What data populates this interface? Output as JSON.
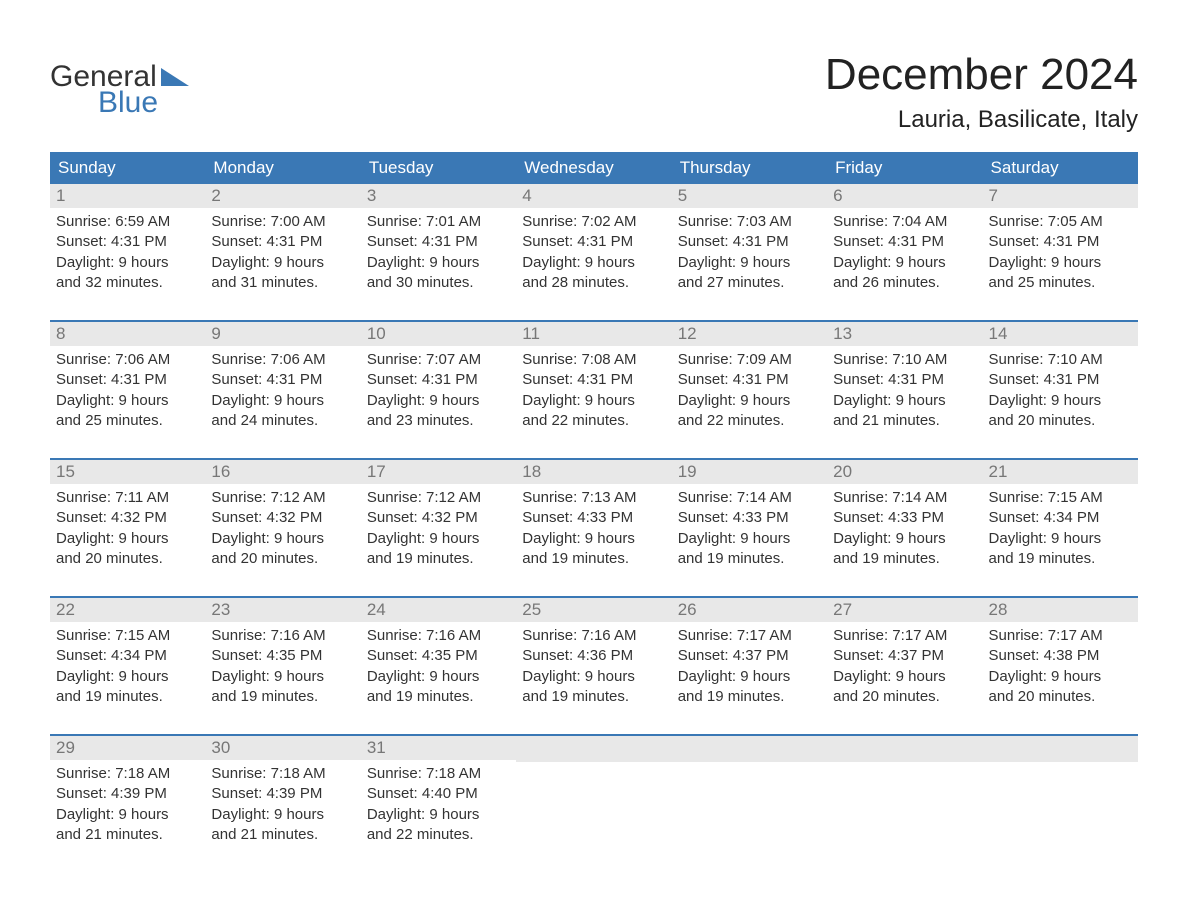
{
  "logo": {
    "word1": "General",
    "word2": "Blue"
  },
  "title": "December 2024",
  "location": "Lauria, Basilicate, Italy",
  "colors": {
    "header_bg": "#3a78b5",
    "header_text": "#ffffff",
    "daynum_bg": "#e8e8e8",
    "daynum_text": "#777777",
    "body_text": "#333333",
    "row_divider": "#3a78b5",
    "page_bg": "#ffffff"
  },
  "typography": {
    "title_fontsize": 44,
    "location_fontsize": 24,
    "weekday_fontsize": 17,
    "daynum_fontsize": 17,
    "body_fontsize": 15
  },
  "weekdays": [
    "Sunday",
    "Monday",
    "Tuesday",
    "Wednesday",
    "Thursday",
    "Friday",
    "Saturday"
  ],
  "labels": {
    "sunrise": "Sunrise:",
    "sunset": "Sunset:",
    "daylight": "Daylight:"
  },
  "weeks": [
    [
      {
        "day": "1",
        "sunrise": "6:59 AM",
        "sunset": "4:31 PM",
        "daylight1": "9 hours",
        "daylight2": "and 32 minutes."
      },
      {
        "day": "2",
        "sunrise": "7:00 AM",
        "sunset": "4:31 PM",
        "daylight1": "9 hours",
        "daylight2": "and 31 minutes."
      },
      {
        "day": "3",
        "sunrise": "7:01 AM",
        "sunset": "4:31 PM",
        "daylight1": "9 hours",
        "daylight2": "and 30 minutes."
      },
      {
        "day": "4",
        "sunrise": "7:02 AM",
        "sunset": "4:31 PM",
        "daylight1": "9 hours",
        "daylight2": "and 28 minutes."
      },
      {
        "day": "5",
        "sunrise": "7:03 AM",
        "sunset": "4:31 PM",
        "daylight1": "9 hours",
        "daylight2": "and 27 minutes."
      },
      {
        "day": "6",
        "sunrise": "7:04 AM",
        "sunset": "4:31 PM",
        "daylight1": "9 hours",
        "daylight2": "and 26 minutes."
      },
      {
        "day": "7",
        "sunrise": "7:05 AM",
        "sunset": "4:31 PM",
        "daylight1": "9 hours",
        "daylight2": "and 25 minutes."
      }
    ],
    [
      {
        "day": "8",
        "sunrise": "7:06 AM",
        "sunset": "4:31 PM",
        "daylight1": "9 hours",
        "daylight2": "and 25 minutes."
      },
      {
        "day": "9",
        "sunrise": "7:06 AM",
        "sunset": "4:31 PM",
        "daylight1": "9 hours",
        "daylight2": "and 24 minutes."
      },
      {
        "day": "10",
        "sunrise": "7:07 AM",
        "sunset": "4:31 PM",
        "daylight1": "9 hours",
        "daylight2": "and 23 minutes."
      },
      {
        "day": "11",
        "sunrise": "7:08 AM",
        "sunset": "4:31 PM",
        "daylight1": "9 hours",
        "daylight2": "and 22 minutes."
      },
      {
        "day": "12",
        "sunrise": "7:09 AM",
        "sunset": "4:31 PM",
        "daylight1": "9 hours",
        "daylight2": "and 22 minutes."
      },
      {
        "day": "13",
        "sunrise": "7:10 AM",
        "sunset": "4:31 PM",
        "daylight1": "9 hours",
        "daylight2": "and 21 minutes."
      },
      {
        "day": "14",
        "sunrise": "7:10 AM",
        "sunset": "4:31 PM",
        "daylight1": "9 hours",
        "daylight2": "and 20 minutes."
      }
    ],
    [
      {
        "day": "15",
        "sunrise": "7:11 AM",
        "sunset": "4:32 PM",
        "daylight1": "9 hours",
        "daylight2": "and 20 minutes."
      },
      {
        "day": "16",
        "sunrise": "7:12 AM",
        "sunset": "4:32 PM",
        "daylight1": "9 hours",
        "daylight2": "and 20 minutes."
      },
      {
        "day": "17",
        "sunrise": "7:12 AM",
        "sunset": "4:32 PM",
        "daylight1": "9 hours",
        "daylight2": "and 19 minutes."
      },
      {
        "day": "18",
        "sunrise": "7:13 AM",
        "sunset": "4:33 PM",
        "daylight1": "9 hours",
        "daylight2": "and 19 minutes."
      },
      {
        "day": "19",
        "sunrise": "7:14 AM",
        "sunset": "4:33 PM",
        "daylight1": "9 hours",
        "daylight2": "and 19 minutes."
      },
      {
        "day": "20",
        "sunrise": "7:14 AM",
        "sunset": "4:33 PM",
        "daylight1": "9 hours",
        "daylight2": "and 19 minutes."
      },
      {
        "day": "21",
        "sunrise": "7:15 AM",
        "sunset": "4:34 PM",
        "daylight1": "9 hours",
        "daylight2": "and 19 minutes."
      }
    ],
    [
      {
        "day": "22",
        "sunrise": "7:15 AM",
        "sunset": "4:34 PM",
        "daylight1": "9 hours",
        "daylight2": "and 19 minutes."
      },
      {
        "day": "23",
        "sunrise": "7:16 AM",
        "sunset": "4:35 PM",
        "daylight1": "9 hours",
        "daylight2": "and 19 minutes."
      },
      {
        "day": "24",
        "sunrise": "7:16 AM",
        "sunset": "4:35 PM",
        "daylight1": "9 hours",
        "daylight2": "and 19 minutes."
      },
      {
        "day": "25",
        "sunrise": "7:16 AM",
        "sunset": "4:36 PM",
        "daylight1": "9 hours",
        "daylight2": "and 19 minutes."
      },
      {
        "day": "26",
        "sunrise": "7:17 AM",
        "sunset": "4:37 PM",
        "daylight1": "9 hours",
        "daylight2": "and 19 minutes."
      },
      {
        "day": "27",
        "sunrise": "7:17 AM",
        "sunset": "4:37 PM",
        "daylight1": "9 hours",
        "daylight2": "and 20 minutes."
      },
      {
        "day": "28",
        "sunrise": "7:17 AM",
        "sunset": "4:38 PM",
        "daylight1": "9 hours",
        "daylight2": "and 20 minutes."
      }
    ],
    [
      {
        "day": "29",
        "sunrise": "7:18 AM",
        "sunset": "4:39 PM",
        "daylight1": "9 hours",
        "daylight2": "and 21 minutes."
      },
      {
        "day": "30",
        "sunrise": "7:18 AM",
        "sunset": "4:39 PM",
        "daylight1": "9 hours",
        "daylight2": "and 21 minutes."
      },
      {
        "day": "31",
        "sunrise": "7:18 AM",
        "sunset": "4:40 PM",
        "daylight1": "9 hours",
        "daylight2": "and 22 minutes."
      },
      null,
      null,
      null,
      null
    ]
  ]
}
